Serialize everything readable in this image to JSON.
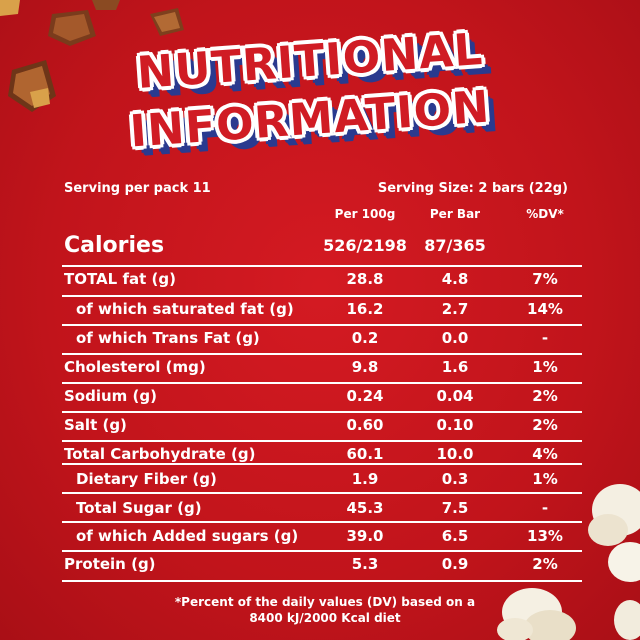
{
  "title": {
    "line1": "NUTRITIONAL",
    "line2": "INFORMATION"
  },
  "serving": {
    "per_pack": "Serving per pack 11",
    "size": "Serving Size: 2 bars (22g)"
  },
  "columns": {
    "per100g": "Per 100g",
    "per_bar": "Per Bar",
    "dv": "%DV*"
  },
  "calories": {
    "label": "Calories",
    "per100g": "526/2198",
    "per_bar": "87/365"
  },
  "rows": [
    {
      "name": "TOTAL fat (g)",
      "per100g": "28.8",
      "per_bar": "4.8",
      "dv": "7%"
    },
    {
      "name": "of which saturated fat (g)",
      "per100g": "16.2",
      "per_bar": "2.7",
      "dv": "14%"
    },
    {
      "name": "of which Trans Fat (g)",
      "per100g": "0.2",
      "per_bar": "0.0",
      "dv": "-"
    },
    {
      "name": "Cholesterol (mg)",
      "per100g": "9.8",
      "per_bar": "1.6",
      "dv": "1%"
    },
    {
      "name": "Sodium (g)",
      "per100g": "0.24",
      "per_bar": "0.04",
      "dv": "2%"
    },
    {
      "name": "Salt (g)",
      "per100g": "0.60",
      "per_bar": "0.10",
      "dv": "2%"
    },
    {
      "name": "Total Carbohydrate (g)",
      "per100g": "60.1",
      "per_bar": "10.0",
      "dv": "4%"
    },
    {
      "name": "Dietary Fiber (g)",
      "per100g": "1.9",
      "per_bar": "0.3",
      "dv": "1%"
    },
    {
      "name": "Total Sugar (g)",
      "per100g": "45.3",
      "per_bar": "7.5",
      "dv": "-"
    },
    {
      "name": "of which Added sugars (g)",
      "per100g": "39.0",
      "per_bar": "6.5",
      "dv": "13%"
    },
    {
      "name": "Protein (g)",
      "per100g": "5.3",
      "per_bar": "0.9",
      "dv": "2%"
    }
  ],
  "footnote": {
    "line1": "*Percent of the daily values (DV) based on a",
    "line2": "8400 kJ/2000 Kcal diet"
  },
  "colors": {
    "background": "#c8161d",
    "title_fill": "#d01c24",
    "title_shadow": "#2a3a8f",
    "text": "#ffffff"
  }
}
